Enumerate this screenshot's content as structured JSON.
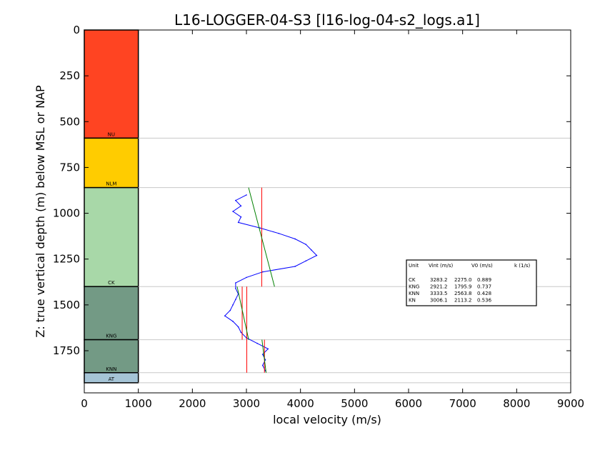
{
  "chart_data": {
    "type": "line",
    "title": "L16-LOGGER-04-S3 [l16-log-04-s2_logs.a1]",
    "xlabel": "local velocity (m/s)",
    "ylabel": "Z: true vertical depth (m) below MSL or NAP",
    "xlim": [
      0,
      9000
    ],
    "ylim": [
      1980,
      0
    ],
    "y_inverted": true,
    "xticks": [
      0,
      1000,
      2000,
      3000,
      4000,
      5000,
      6000,
      7000,
      8000,
      9000
    ],
    "yticks": [
      0,
      250,
      500,
      750,
      1000,
      1250,
      1500,
      1750
    ],
    "grid": false,
    "units": [
      {
        "name": "NU",
        "top": 0,
        "base": 590,
        "color": "#ff4422"
      },
      {
        "name": "NLM",
        "top": 590,
        "base": 860,
        "color": "#ffcc00"
      },
      {
        "name": "CK",
        "top": 860,
        "base": 1400,
        "color": "#a8d8a8"
      },
      {
        "name": "KNG",
        "top": 1400,
        "base": 1690,
        "color": "#739a85"
      },
      {
        "name": "KNN",
        "top": 1690,
        "base": 1870,
        "color": "#739a85"
      },
      {
        "name": "AT",
        "top": 1870,
        "base": 1925,
        "color": "#a5c4d6"
      }
    ],
    "unit_column_xlim": [
      0,
      1000
    ],
    "boundary_depths": [
      590,
      860,
      1400,
      1690,
      1870,
      1925
    ],
    "velocity_log": {
      "color": "#0000ff",
      "points": [
        {
          "z": 900,
          "v": 3000
        },
        {
          "z": 930,
          "v": 2800
        },
        {
          "z": 960,
          "v": 2900
        },
        {
          "z": 990,
          "v": 2750
        },
        {
          "z": 1020,
          "v": 2900
        },
        {
          "z": 1050,
          "v": 2850
        },
        {
          "z": 1080,
          "v": 3250
        },
        {
          "z": 1110,
          "v": 3600
        },
        {
          "z": 1140,
          "v": 3900
        },
        {
          "z": 1170,
          "v": 4100
        },
        {
          "z": 1200,
          "v": 4200
        },
        {
          "z": 1230,
          "v": 4300
        },
        {
          "z": 1260,
          "v": 4100
        },
        {
          "z": 1290,
          "v": 3900
        },
        {
          "z": 1320,
          "v": 3300
        },
        {
          "z": 1350,
          "v": 3000
        },
        {
          "z": 1380,
          "v": 2800
        },
        {
          "z": 1410,
          "v": 2800
        },
        {
          "z": 1440,
          "v": 2850
        },
        {
          "z": 1470,
          "v": 2800
        },
        {
          "z": 1500,
          "v": 2750
        },
        {
          "z": 1530,
          "v": 2700
        },
        {
          "z": 1560,
          "v": 2600
        },
        {
          "z": 1590,
          "v": 2750
        },
        {
          "z": 1620,
          "v": 2850
        },
        {
          "z": 1650,
          "v": 2900
        },
        {
          "z": 1680,
          "v": 3000
        },
        {
          "z": 1710,
          "v": 3200
        },
        {
          "z": 1740,
          "v": 3400
        },
        {
          "z": 1770,
          "v": 3300
        },
        {
          "z": 1800,
          "v": 3350
        },
        {
          "z": 1830,
          "v": 3300
        },
        {
          "z": 1860,
          "v": 3350
        }
      ]
    },
    "vint_lines": {
      "color": "#ff0000",
      "segments": [
        {
          "unit": "CK",
          "v": 3283.2,
          "z_top": 860,
          "z_base": 1400
        },
        {
          "unit": "KNG",
          "v": 2921.2,
          "z_top": 1400,
          "z_base": 1690
        },
        {
          "unit": "KNN",
          "v": 3333.5,
          "z_top": 1690,
          "z_base": 1870
        },
        {
          "unit": "KN",
          "v": 3006.1,
          "z_top": 1400,
          "z_base": 1870
        }
      ]
    },
    "v0k_lines": {
      "color": "#008000",
      "segments": [
        {
          "unit": "CK",
          "v0": 2275.0,
          "k": 0.889,
          "z_top": 860,
          "z_base": 1400
        },
        {
          "unit": "KNG",
          "v0": 1795.9,
          "k": 0.737,
          "z_top": 1400,
          "z_base": 1690
        },
        {
          "unit": "KNN",
          "v0": 2563.8,
          "k": 0.428,
          "z_top": 1690,
          "z_base": 1870
        }
      ]
    },
    "table": {
      "headers": [
        "Unit",
        "Vint (m/s)",
        "V0 (m/s)",
        "k (1/s)"
      ],
      "rows": [
        [
          "CK",
          "3283.2",
          "2275.0",
          "0.889"
        ],
        [
          "KNG",
          "2921.2",
          "1795.9",
          "0.737"
        ],
        [
          "KNN",
          "3333.5",
          "2563.8",
          "0.428"
        ],
        [
          "KN",
          "3006.1",
          "2113.2",
          "0.536"
        ]
      ],
      "position": "right"
    }
  }
}
